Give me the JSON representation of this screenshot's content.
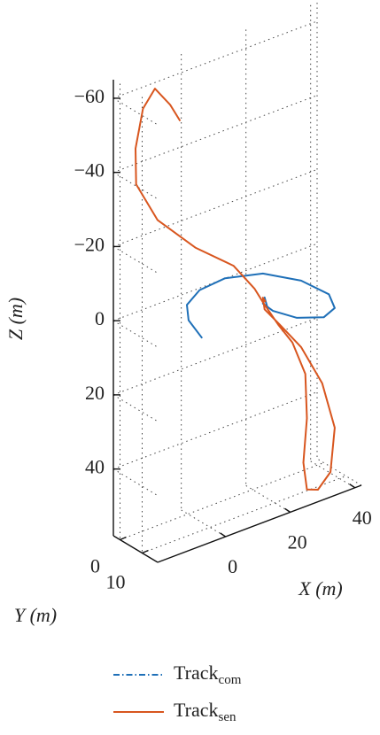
{
  "chart_data": {
    "type": "line3d",
    "xlabel": "X (m)",
    "ylabel": "Y (m)",
    "zlabel": "Z (m)",
    "xlim": [
      -21,
      42
    ],
    "ylim": [
      -3,
      17
    ],
    "zlim": [
      -65,
      58
    ],
    "z_reversed": true,
    "xticks": [
      0,
      20,
      40
    ],
    "yticks": [
      0,
      10
    ],
    "zticks": [
      {
        "value": -60,
        "label": "−60"
      },
      {
        "value": -40,
        "label": "−40"
      },
      {
        "value": -20,
        "label": "−20"
      },
      0,
      20,
      40
    ],
    "grid": true,
    "series": [
      {
        "name": "Track",
        "subscript": "com",
        "color": "#1f70b8",
        "legend_dash": "dashdot",
        "x": [
          -0.4,
          -4.6,
          -5.1,
          -1.2,
          6.7,
          18.4,
          30.2,
          38.8,
          40.6,
          37.2,
          28.9,
          21.5,
          18.4,
          18.9,
          19.7
        ],
        "y": [
          7,
          7,
          7,
          7,
          7,
          7,
          7,
          7,
          7,
          7,
          7,
          7,
          7,
          7,
          7
        ],
        "z": [
          7.9,
          1.7,
          -2.6,
          -5.3,
          -5.9,
          -3.3,
          2.5,
          9.0,
          13.3,
          14.7,
          12.1,
          7.8,
          4.8,
          3.3,
          6.0
        ]
      },
      {
        "name": "Track",
        "subscript": "sen",
        "color": "#d8561f",
        "legend_dash": "solid",
        "x": [
          -7.2,
          -10.3,
          -15.0,
          -18.7,
          -21.0,
          -20.8,
          -14.2,
          -2.5,
          9.3,
          15.8,
          18.4,
          23.1,
          27.5,
          31.5,
          32.0,
          30.9,
          32.0,
          35.4,
          39.3,
          40.6,
          36.7,
          30.2,
          23.6,
          18.9,
          18.4,
          19.2
        ],
        "y": [
          7,
          7,
          7,
          7,
          7,
          7,
          7,
          7,
          7,
          7,
          7,
          7,
          7,
          7,
          7,
          7,
          7,
          7,
          7,
          7,
          7,
          7,
          7,
          7,
          7,
          7
        ],
        "z": [
          -52.9,
          -58.3,
          -64.2,
          -60.0,
          -50.0,
          -40.3,
          -28.5,
          -17.2,
          -8.4,
          -0.1,
          4.4,
          12.0,
          18.3,
          28.1,
          40.2,
          51.8,
          59.4,
          60.6,
          57.1,
          45.6,
          32.3,
          20.4,
          12.2,
          6.5,
          3.2,
          4.6
        ]
      }
    ]
  }
}
